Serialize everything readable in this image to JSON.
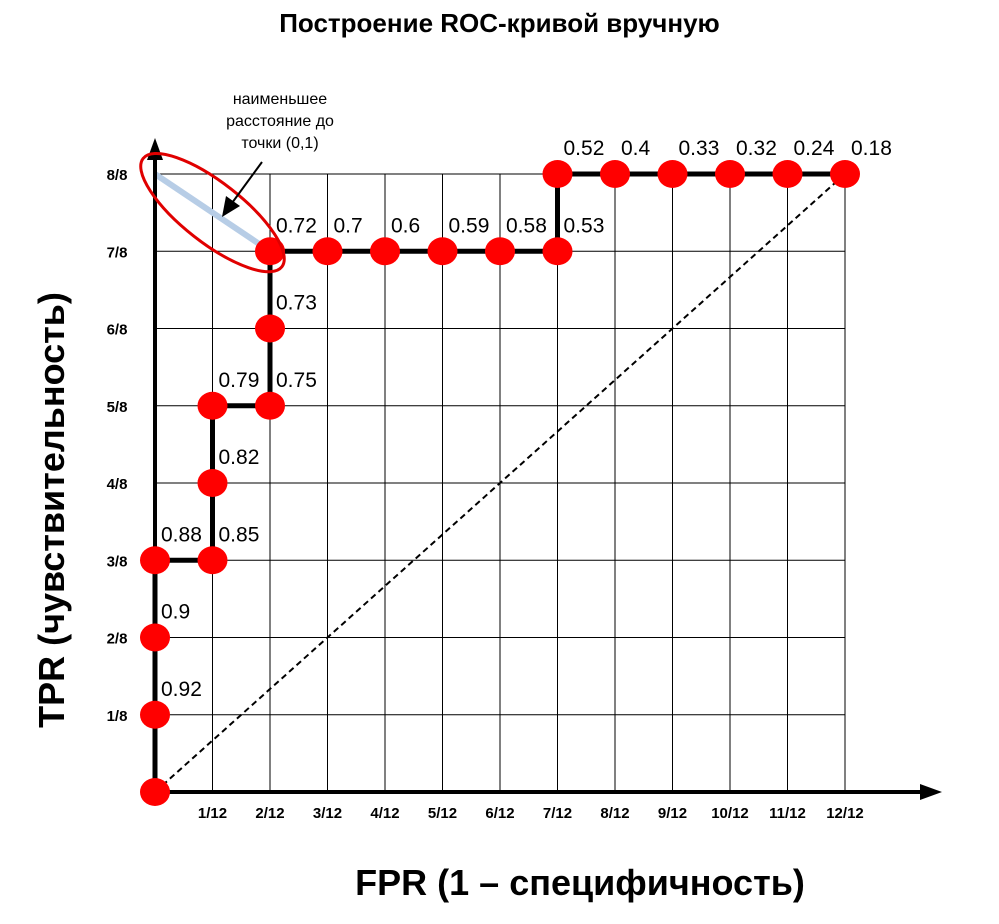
{
  "colors": {
    "point": "#ff0000",
    "curve": "#000000",
    "grid": "#000000",
    "highlight_line": "#b7cde6",
    "annotation_ellipse": "#e00000"
  },
  "annotation": {
    "lines": [
      "наименьшее",
      "расстояние до",
      "точки (0,1)"
    ]
  },
  "chart_data": {
    "type": "line",
    "title": "Построение ROC-кривой вручную",
    "xlabel": "FPR (1 – специфичность)",
    "ylabel": "TPR (чувствительность)",
    "x_tick_labels": [
      "1/12",
      "2/12",
      "3/12",
      "4/12",
      "5/12",
      "6/12",
      "7/12",
      "8/12",
      "9/12",
      "10/12",
      "11/12",
      "12/12"
    ],
    "y_tick_labels": [
      "1/8",
      "2/8",
      "3/8",
      "4/8",
      "5/8",
      "6/8",
      "7/8",
      "8/8"
    ],
    "xlim": [
      0,
      12
    ],
    "ylim": [
      0,
      8
    ],
    "x_units": "twelfths",
    "y_units": "eighths",
    "grid": true,
    "points": [
      {
        "x": 0,
        "y": 0,
        "label": ""
      },
      {
        "x": 0,
        "y": 1,
        "label": "0.92"
      },
      {
        "x": 0,
        "y": 2,
        "label": "0.9"
      },
      {
        "x": 0,
        "y": 3,
        "label": "0.88"
      },
      {
        "x": 1,
        "y": 3,
        "label": "0.85"
      },
      {
        "x": 1,
        "y": 4,
        "label": "0.82"
      },
      {
        "x": 1,
        "y": 5,
        "label": "0.79"
      },
      {
        "x": 2,
        "y": 5,
        "label": "0.75"
      },
      {
        "x": 2,
        "y": 6,
        "label": "0.73"
      },
      {
        "x": 2,
        "y": 7,
        "label": "0.72"
      },
      {
        "x": 3,
        "y": 7,
        "label": "0.7"
      },
      {
        "x": 4,
        "y": 7,
        "label": "0.6"
      },
      {
        "x": 5,
        "y": 7,
        "label": "0.59"
      },
      {
        "x": 6,
        "y": 7,
        "label": "0.58"
      },
      {
        "x": 7,
        "y": 7,
        "label": "0.53"
      },
      {
        "x": 7,
        "y": 8,
        "label": "0.52"
      },
      {
        "x": 8,
        "y": 8,
        "label": "0.4"
      },
      {
        "x": 9,
        "y": 8,
        "label": "0.33"
      },
      {
        "x": 10,
        "y": 8,
        "label": "0.32"
      },
      {
        "x": 11,
        "y": 8,
        "label": "0.24"
      },
      {
        "x": 12,
        "y": 8,
        "label": "0.18"
      }
    ],
    "diagonal": {
      "from": [
        0,
        0
      ],
      "to": [
        12,
        8
      ],
      "style": "dashed"
    },
    "highlight": {
      "from": [
        0,
        8
      ],
      "to": [
        2,
        7
      ]
    }
  }
}
